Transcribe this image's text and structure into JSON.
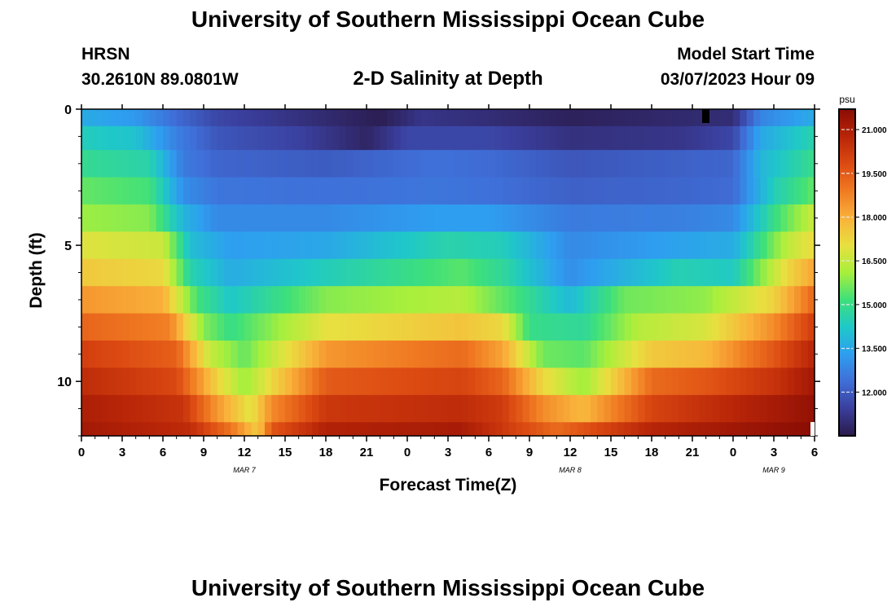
{
  "header": {
    "title": "University of Southern Mississippi Ocean Cube",
    "station": "HRSN",
    "coords": "30.2610N  89.0801W",
    "subtitle": "2-D Salinity at Depth",
    "model_start_label": "Model Start Time",
    "model_start_value": "03/07/2023 Hour 09"
  },
  "footer": {
    "title": "University of Southern Mississippi Ocean Cube"
  },
  "chart_data": {
    "type": "heatmap",
    "title": "2-D Salinity at Depth",
    "xlabel": "Forecast Time(Z)",
    "ylabel": "Depth (ft)",
    "x_ticks": [
      "0",
      "3",
      "6",
      "9",
      "12",
      "15",
      "18",
      "21",
      "0",
      "3",
      "6",
      "9",
      "12",
      "15",
      "18",
      "21",
      "0",
      "3",
      "6"
    ],
    "x_range_hours": [
      0,
      54
    ],
    "date_labels": [
      {
        "label": "MAR 7",
        "hour": 12
      },
      {
        "label": "MAR 8",
        "hour": 36
      },
      {
        "label": "MAR 9",
        "hour": 51
      }
    ],
    "y_ticks": [
      0,
      5,
      10
    ],
    "y_range_ft": [
      0,
      12
    ],
    "colorbar": {
      "unit": "psu",
      "range": [
        10.5,
        21.7
      ],
      "ticks": [
        "12.000",
        "13.500",
        "15.000",
        "16.500",
        "18.000",
        "19.500",
        "21.000"
      ],
      "colors": [
        "#2a1a4a",
        "#3a3e9c",
        "#3f6fd8",
        "#2e9ef0",
        "#1fc8c8",
        "#3ee07a",
        "#a8ef3c",
        "#e8e040",
        "#f9b13a",
        "#f07a22",
        "#dc4a12",
        "#b82508",
        "#8a0c04"
      ]
    },
    "layers": [
      {
        "depth_ft": 0.25,
        "salinity": [
          [
            0,
            13.6
          ],
          [
            4,
            13.2
          ],
          [
            7,
            12.3
          ],
          [
            10,
            11.6
          ],
          [
            16,
            11.1
          ],
          [
            22,
            10.6
          ],
          [
            25,
            11.2
          ],
          [
            30,
            11.0
          ],
          [
            36,
            10.7
          ],
          [
            44,
            10.9
          ],
          [
            48,
            11.0
          ],
          [
            50,
            12.8
          ],
          [
            54,
            13.6
          ]
        ]
      },
      {
        "depth_ft": 1.0,
        "salinity": [
          [
            0,
            14.4
          ],
          [
            4,
            14.1
          ],
          [
            7,
            12.7
          ],
          [
            10,
            11.9
          ],
          [
            16,
            11.5
          ],
          [
            21,
            10.8
          ],
          [
            24,
            11.6
          ],
          [
            30,
            11.6
          ],
          [
            36,
            11.1
          ],
          [
            44,
            11.2
          ],
          [
            48,
            11.6
          ],
          [
            50,
            13.5
          ],
          [
            54,
            14.6
          ]
        ]
      },
      {
        "depth_ft": 2.0,
        "salinity": [
          [
            0,
            14.9
          ],
          [
            5,
            14.6
          ],
          [
            7.5,
            12.6
          ],
          [
            10,
            12.2
          ],
          [
            18,
            12.0
          ],
          [
            26,
            12.4
          ],
          [
            30,
            12.3
          ],
          [
            36,
            11.9
          ],
          [
            44,
            12.1
          ],
          [
            48,
            12.2
          ],
          [
            50,
            13.8
          ],
          [
            54,
            15.0
          ]
        ]
      },
      {
        "depth_ft": 3.0,
        "salinity": [
          [
            0,
            15.5
          ],
          [
            5,
            15.2
          ],
          [
            7.5,
            13.0
          ],
          [
            10,
            12.5
          ],
          [
            18,
            12.4
          ],
          [
            26,
            12.5
          ],
          [
            30,
            12.4
          ],
          [
            36,
            12.1
          ],
          [
            44,
            12.2
          ],
          [
            48,
            12.3
          ],
          [
            51,
            14.4
          ],
          [
            54,
            15.5
          ]
        ]
      },
      {
        "depth_ft": 4.0,
        "salinity": [
          [
            0,
            16.0
          ],
          [
            5,
            15.8
          ],
          [
            7.5,
            13.8
          ],
          [
            10,
            12.9
          ],
          [
            18,
            12.9
          ],
          [
            26,
            13.3
          ],
          [
            30,
            13.3
          ],
          [
            36,
            12.6
          ],
          [
            44,
            12.7
          ],
          [
            48,
            12.9
          ],
          [
            51,
            15.0
          ],
          [
            54,
            16.6
          ]
        ]
      },
      {
        "depth_ft": 5.0,
        "salinity": [
          [
            0,
            16.9
          ],
          [
            6,
            16.6
          ],
          [
            8,
            14.0
          ],
          [
            11,
            13.3
          ],
          [
            18,
            13.5
          ],
          [
            27,
            14.6
          ],
          [
            31,
            14.4
          ],
          [
            36,
            12.9
          ],
          [
            44,
            13.4
          ],
          [
            48,
            13.6
          ],
          [
            52,
            16.4
          ],
          [
            54,
            17.2
          ]
        ]
      },
      {
        "depth_ft": 6.0,
        "salinity": [
          [
            0,
            17.5
          ],
          [
            6,
            17.2
          ],
          [
            8,
            14.6
          ],
          [
            11,
            13.6
          ],
          [
            18,
            14.4
          ],
          [
            28,
            15.4
          ],
          [
            31,
            14.8
          ],
          [
            36,
            13.0
          ],
          [
            44,
            14.5
          ],
          [
            48,
            14.3
          ],
          [
            52,
            17.2
          ],
          [
            54,
            18.2
          ]
        ]
      },
      {
        "depth_ft": 7.0,
        "salinity": [
          [
            0,
            18.4
          ],
          [
            6,
            18.0
          ],
          [
            8.5,
            15.2
          ],
          [
            11,
            14.2
          ],
          [
            18,
            15.8
          ],
          [
            28,
            16.3
          ],
          [
            32,
            15.2
          ],
          [
            36,
            13.9
          ],
          [
            40,
            15.6
          ],
          [
            46,
            15.9
          ],
          [
            51,
            17.3
          ],
          [
            54,
            19.3
          ]
        ]
      },
      {
        "depth_ft": 8.0,
        "salinity": [
          [
            0,
            19.3
          ],
          [
            6.5,
            18.8
          ],
          [
            9,
            15.8
          ],
          [
            11,
            15.0
          ],
          [
            18,
            17.0
          ],
          [
            28,
            17.6
          ],
          [
            31,
            17.2
          ],
          [
            33,
            15.0
          ],
          [
            37,
            14.8
          ],
          [
            41,
            16.3
          ],
          [
            46,
            16.8
          ],
          [
            51,
            18.6
          ],
          [
            54,
            20.2
          ]
        ]
      },
      {
        "depth_ft": 9.0,
        "salinity": [
          [
            0,
            20.1
          ],
          [
            7,
            19.4
          ],
          [
            9.5,
            16.5
          ],
          [
            12,
            15.5
          ],
          [
            18,
            18.4
          ],
          [
            28,
            19.2
          ],
          [
            31,
            18.2
          ],
          [
            34,
            15.6
          ],
          [
            37,
            15.4
          ],
          [
            42,
            17.5
          ],
          [
            46,
            17.8
          ],
          [
            51,
            19.6
          ],
          [
            54,
            20.8
          ]
        ]
      },
      {
        "depth_ft": 10.0,
        "salinity": [
          [
            0,
            20.6
          ],
          [
            7,
            19.9
          ],
          [
            10,
            17.3
          ],
          [
            12,
            16.0
          ],
          [
            18,
            19.5
          ],
          [
            28,
            20.0
          ],
          [
            31,
            19.3
          ],
          [
            34,
            17.2
          ],
          [
            37,
            16.0
          ],
          [
            42,
            19.2
          ],
          [
            46,
            19.6
          ],
          [
            51,
            20.4
          ],
          [
            54,
            21.2
          ]
        ]
      },
      {
        "depth_ft": 11.0,
        "salinity": [
          [
            0,
            21.0
          ],
          [
            7.5,
            20.4
          ],
          [
            10,
            18.4
          ],
          [
            12.5,
            16.9
          ],
          [
            14,
            18.6
          ],
          [
            18,
            20.3
          ],
          [
            28,
            20.6
          ],
          [
            31,
            20.2
          ],
          [
            34,
            18.6
          ],
          [
            37,
            17.8
          ],
          [
            42,
            20.0
          ],
          [
            46,
            20.5
          ],
          [
            54,
            21.5
          ]
        ]
      },
      {
        "depth_ft": 12.0,
        "salinity": [
          [
            0,
            21.2
          ],
          [
            8,
            20.6
          ],
          [
            11,
            19.0
          ],
          [
            13,
            17.4
          ],
          [
            14,
            19.6
          ],
          [
            18,
            20.9
          ],
          [
            28,
            21.1
          ],
          [
            35,
            19.2
          ],
          [
            38,
            19.9
          ],
          [
            42,
            20.8
          ],
          [
            54,
            21.7
          ]
        ]
      }
    ]
  }
}
